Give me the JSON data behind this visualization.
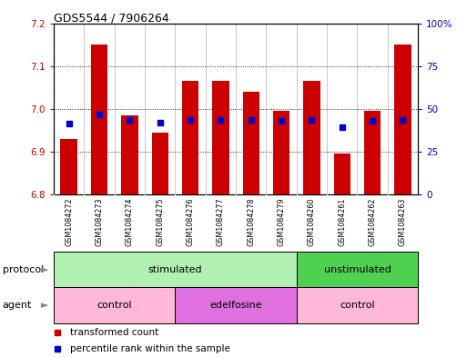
{
  "title": "GDS5544 / 7906264",
  "samples": [
    "GSM1084272",
    "GSM1084273",
    "GSM1084274",
    "GSM1084275",
    "GSM1084276",
    "GSM1084277",
    "GSM1084278",
    "GSM1084279",
    "GSM1084260",
    "GSM1084261",
    "GSM1084262",
    "GSM1084263"
  ],
  "red_values": [
    6.93,
    7.15,
    6.985,
    6.945,
    7.065,
    7.065,
    7.04,
    6.995,
    7.065,
    6.895,
    6.995,
    7.15
  ],
  "blue_values": [
    6.965,
    6.987,
    6.975,
    6.967,
    6.975,
    6.975,
    6.975,
    6.972,
    6.975,
    6.958,
    6.972,
    6.975
  ],
  "ymin": 6.8,
  "ymax": 7.2,
  "yticks_left": [
    6.8,
    6.9,
    7.0,
    7.1,
    7.2
  ],
  "yticks_right": [
    0,
    25,
    50,
    75,
    100
  ],
  "protocol_groups": [
    {
      "label": "stimulated",
      "start": 0,
      "end": 8,
      "color": "#b0f0b0"
    },
    {
      "label": "unstimulated",
      "start": 8,
      "end": 12,
      "color": "#50d050"
    }
  ],
  "agent_groups": [
    {
      "label": "control",
      "start": 0,
      "end": 4,
      "color": "#ffb8d8"
    },
    {
      "label": "edelfosine",
      "start": 4,
      "end": 8,
      "color": "#e070e0"
    },
    {
      "label": "control",
      "start": 8,
      "end": 12,
      "color": "#ffb8d8"
    }
  ],
  "bar_color": "#cc0000",
  "blue_color": "#0000cc",
  "label_color_left": "#cc0000",
  "label_color_right": "#0000cc",
  "bar_width": 0.55,
  "blue_marker_size": 5,
  "sample_bg_color": "#d8d8d8",
  "chart_bg_color": "#ffffff"
}
